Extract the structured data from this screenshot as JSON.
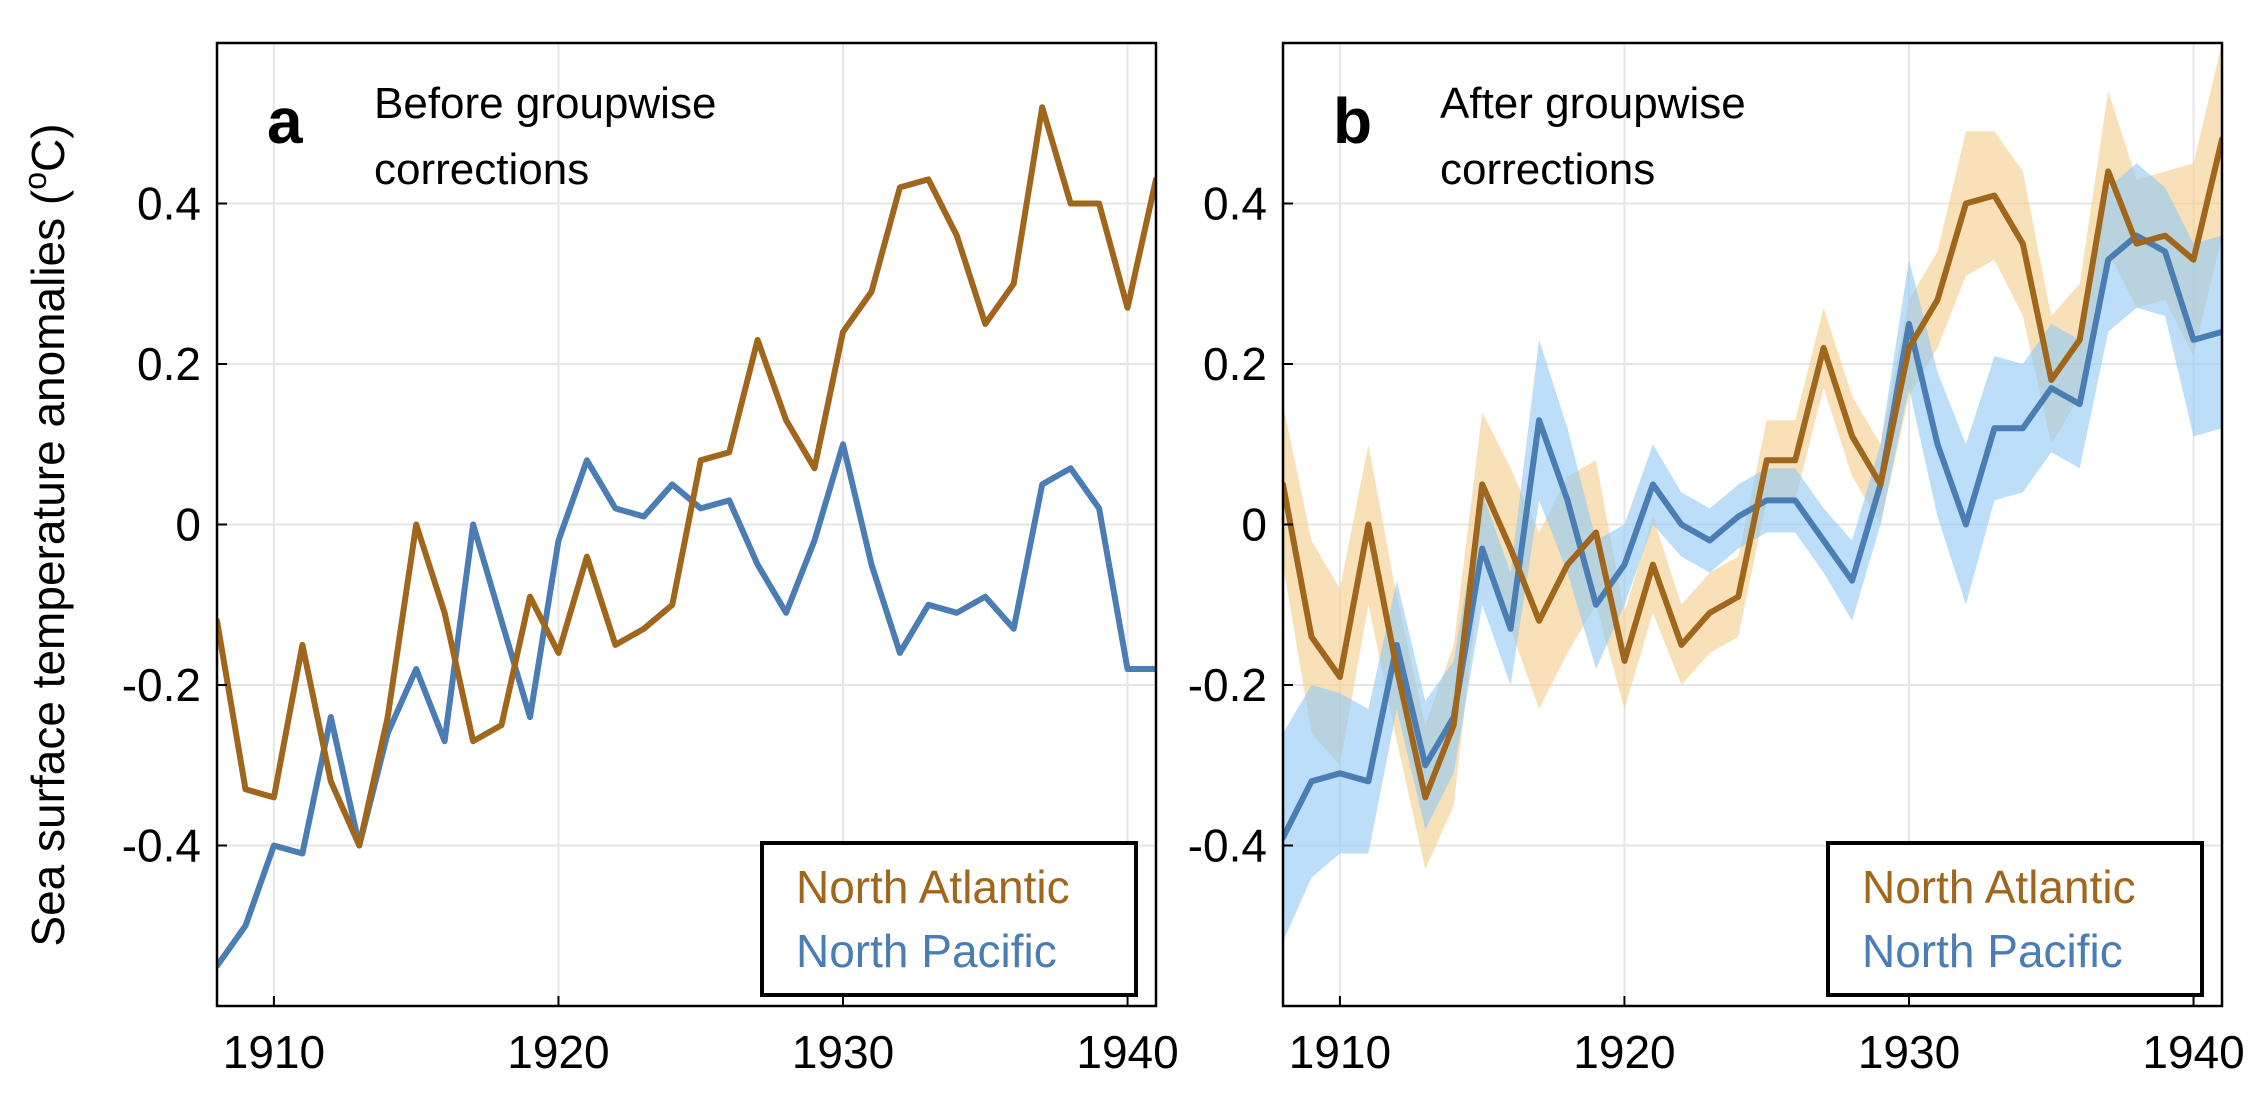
{
  "chart_data": {
    "ylabel": "Sea surface temperature anomalies (",
    "ylabel_sup": "o",
    "ylabel_end": "C)",
    "shared_y_axis": true,
    "colors": {
      "north_atlantic": "#A0661B",
      "north_pacific": "#4A7DB4",
      "atlantic_band": "#F4CF8E",
      "pacific_band": "#93C9F5",
      "grid": "#e6e6e6"
    },
    "panels": [
      {
        "type": "line",
        "letter": "a",
        "title_lines": [
          "Before groupwise",
          "corrections"
        ],
        "xlim": [
          1908,
          1941
        ],
        "ylim": [
          -0.6,
          0.6
        ],
        "xticks": [
          1910,
          1920,
          1930,
          1940
        ],
        "yticks": [
          -0.4,
          -0.2,
          0,
          0.2,
          0.4
        ],
        "ytick_labels": [
          "-0.4",
          "-0.2",
          "0",
          "0.2",
          "0.4"
        ],
        "x": [
          1908,
          1909,
          1910,
          1911,
          1912,
          1913,
          1914,
          1915,
          1916,
          1917,
          1918,
          1919,
          1920,
          1921,
          1922,
          1923,
          1924,
          1925,
          1926,
          1927,
          1928,
          1929,
          1930,
          1931,
          1932,
          1933,
          1934,
          1935,
          1936,
          1937,
          1938,
          1939,
          1940,
          1941
        ],
        "legend": {
          "position": "lower-right",
          "entries": [
            "North Atlantic",
            "North Pacific"
          ]
        },
        "series": [
          {
            "name": "North Atlantic",
            "values": [
              -0.12,
              -0.33,
              -0.34,
              -0.15,
              -0.32,
              -0.4,
              -0.24,
              0.0,
              -0.11,
              -0.27,
              -0.25,
              -0.09,
              -0.16,
              -0.04,
              -0.15,
              -0.13,
              -0.1,
              0.08,
              0.09,
              0.23,
              0.13,
              0.07,
              0.24,
              0.29,
              0.42,
              0.43,
              0.36,
              0.25,
              0.3,
              0.52,
              0.4,
              0.4,
              0.27,
              0.43
            ]
          },
          {
            "name": "North Pacific",
            "values": [
              -0.55,
              -0.5,
              -0.4,
              -0.41,
              -0.24,
              -0.4,
              -0.26,
              -0.18,
              -0.27,
              0.0,
              -0.12,
              -0.24,
              -0.02,
              0.08,
              0.02,
              0.01,
              0.05,
              0.02,
              0.03,
              -0.05,
              -0.11,
              -0.02,
              0.1,
              -0.05,
              -0.16,
              -0.1,
              -0.11,
              -0.09,
              -0.13,
              0.05,
              0.07,
              0.02,
              -0.18,
              -0.18
            ]
          }
        ]
      },
      {
        "type": "line",
        "letter": "b",
        "title_lines": [
          "After groupwise",
          "corrections"
        ],
        "xlim": [
          1908,
          1941
        ],
        "ylim": [
          -0.6,
          0.6
        ],
        "xticks": [
          1910,
          1920,
          1930,
          1940
        ],
        "yticks": [
          -0.4,
          -0.2,
          0,
          0.2,
          0.4
        ],
        "ytick_labels": [
          "-0.4",
          "-0.2",
          "0",
          "0.2",
          "0.4"
        ],
        "x": [
          1908,
          1909,
          1910,
          1911,
          1912,
          1913,
          1914,
          1915,
          1916,
          1917,
          1918,
          1919,
          1920,
          1921,
          1922,
          1923,
          1924,
          1925,
          1926,
          1927,
          1928,
          1929,
          1930,
          1931,
          1932,
          1933,
          1934,
          1935,
          1936,
          1937,
          1938,
          1939,
          1940,
          1941
        ],
        "legend": {
          "position": "lower-right",
          "entries": [
            "North Atlantic",
            "North Pacific"
          ]
        },
        "series": [
          {
            "name": "North Atlantic",
            "values": [
              0.05,
              -0.14,
              -0.19,
              0.0,
              -0.18,
              -0.34,
              -0.25,
              0.05,
              -0.03,
              -0.12,
              -0.05,
              -0.01,
              -0.17,
              -0.05,
              -0.15,
              -0.11,
              -0.09,
              0.08,
              0.08,
              0.22,
              0.11,
              0.05,
              0.22,
              0.28,
              0.4,
              0.41,
              0.35,
              0.18,
              0.23,
              0.44,
              0.35,
              0.36,
              0.33,
              0.48
            ],
            "band_halfwidth": [
              0.1,
              0.12,
              0.11,
              0.1,
              0.09,
              0.09,
              0.1,
              0.09,
              0.1,
              0.11,
              0.11,
              0.09,
              0.06,
              0.06,
              0.05,
              0.05,
              0.05,
              0.05,
              0.05,
              0.05,
              0.05,
              0.05,
              0.06,
              0.06,
              0.09,
              0.08,
              0.09,
              0.08,
              0.07,
              0.1,
              0.08,
              0.08,
              0.12,
              0.12
            ]
          },
          {
            "name": "North Pacific",
            "values": [
              -0.39,
              -0.32,
              -0.31,
              -0.32,
              -0.15,
              -0.3,
              -0.24,
              -0.03,
              -0.13,
              0.13,
              0.03,
              -0.1,
              -0.05,
              0.05,
              0.0,
              -0.02,
              0.01,
              0.03,
              0.03,
              -0.02,
              -0.07,
              0.05,
              0.25,
              0.1,
              0.0,
              0.12,
              0.12,
              0.17,
              0.15,
              0.33,
              0.36,
              0.34,
              0.23,
              0.24
            ],
            "band_halfwidth": [
              0.13,
              0.12,
              0.1,
              0.09,
              0.08,
              0.08,
              0.07,
              0.07,
              0.07,
              0.1,
              0.09,
              0.08,
              0.05,
              0.05,
              0.04,
              0.04,
              0.04,
              0.04,
              0.04,
              0.04,
              0.05,
              0.05,
              0.08,
              0.09,
              0.1,
              0.09,
              0.08,
              0.08,
              0.08,
              0.09,
              0.09,
              0.08,
              0.12,
              0.12
            ]
          }
        ]
      }
    ]
  }
}
